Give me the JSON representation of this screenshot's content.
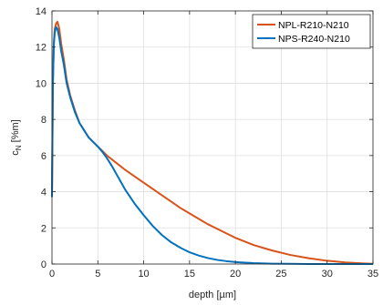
{
  "chart_data": {
    "type": "line",
    "xlabel": "depth [µm]",
    "ylabel_main": "c",
    "ylabel_sub": "N",
    "ylabel_rest": " [%m]",
    "xlim": [
      0,
      35
    ],
    "ylim": [
      0,
      14
    ],
    "xticks": [
      0,
      5,
      10,
      15,
      20,
      25,
      30,
      35
    ],
    "yticks": [
      0,
      2,
      4,
      6,
      8,
      10,
      12,
      14
    ],
    "grid": true,
    "legend_position": "top-right",
    "series": [
      {
        "name": "NPL-R210-N210",
        "color": "#D95319",
        "x": [
          0,
          0.1,
          0.2,
          0.3,
          0.45,
          0.6,
          0.8,
          1.0,
          1.3,
          1.6,
          2.0,
          2.5,
          3.0,
          3.5,
          4.0,
          4.5,
          5.0,
          5.5,
          6.0,
          7.0,
          8.0,
          9.0,
          10.0,
          11.0,
          12.0,
          13.0,
          14.0,
          15.0,
          16.0,
          17.0,
          18.0,
          19.0,
          20.0,
          22.0,
          24.0,
          26.0,
          28.0,
          30.0,
          32.0,
          34.0,
          35.0
        ],
        "y": [
          3.7,
          10.0,
          12.2,
          13.0,
          13.3,
          13.4,
          13.0,
          12.2,
          11.3,
          10.2,
          9.3,
          8.5,
          7.8,
          7.4,
          7.0,
          6.75,
          6.5,
          6.25,
          6.0,
          5.6,
          5.2,
          4.85,
          4.5,
          4.15,
          3.8,
          3.45,
          3.1,
          2.8,
          2.5,
          2.2,
          1.95,
          1.7,
          1.45,
          1.05,
          0.75,
          0.5,
          0.32,
          0.18,
          0.09,
          0.03,
          0.01
        ]
      },
      {
        "name": "NPS-R240-N210",
        "color": "#0072BD",
        "x": [
          0,
          0.1,
          0.2,
          0.3,
          0.45,
          0.6,
          0.8,
          1.0,
          1.3,
          1.6,
          2.0,
          2.5,
          3.0,
          3.5,
          4.0,
          4.5,
          5.0,
          5.5,
          6.0,
          6.5,
          7.0,
          7.5,
          8.0,
          9.0,
          10.0,
          11.0,
          12.0,
          13.0,
          14.0,
          15.0,
          16.0,
          17.0,
          18.0,
          19.0,
          20.0,
          22.0,
          24.0,
          26.0,
          28.0,
          30.0,
          35.0
        ],
        "y": [
          3.7,
          10.0,
          12.1,
          12.8,
          13.1,
          13.0,
          12.5,
          11.8,
          11.0,
          10.0,
          9.2,
          8.4,
          7.8,
          7.4,
          7.0,
          6.75,
          6.5,
          6.2,
          5.85,
          5.45,
          5.0,
          4.55,
          4.1,
          3.35,
          2.7,
          2.1,
          1.6,
          1.2,
          0.9,
          0.65,
          0.47,
          0.33,
          0.23,
          0.16,
          0.11,
          0.05,
          0.02,
          0.01,
          0.0,
          0.0,
          0.0
        ]
      }
    ]
  }
}
